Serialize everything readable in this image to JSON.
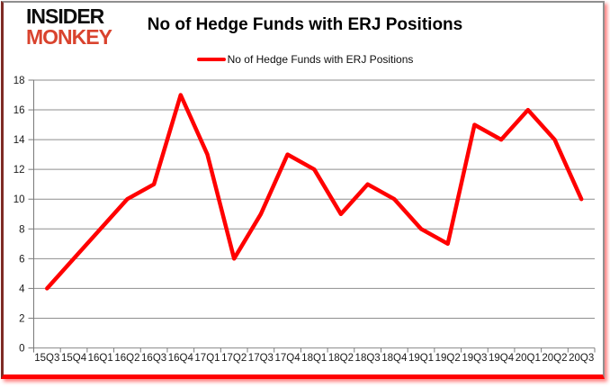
{
  "logo": {
    "line1": "INSIDER",
    "line2": "MONKEY"
  },
  "header": {
    "title": "No of Hedge Funds with ERJ Positions"
  },
  "legend": {
    "label": "No of Hedge Funds with ERJ Positions"
  },
  "colors": {
    "line": "#ff0000",
    "grid": "#8e8e8e",
    "axis": "#7a7a7a",
    "tick_label": "#1a1a1a",
    "logo_accent": "#d9432e",
    "frame_bottom": "#ff0000"
  },
  "chart_data": {
    "type": "line",
    "title": "No of Hedge Funds with ERJ Positions",
    "categories": [
      "15Q3",
      "15Q4",
      "16Q1",
      "16Q2",
      "16Q3",
      "16Q4",
      "17Q1",
      "17Q2",
      "17Q3",
      "17Q4",
      "18Q1",
      "18Q2",
      "18Q3",
      "18Q4",
      "19Q1",
      "19Q2",
      "19Q3",
      "19Q4",
      "20Q1",
      "20Q2",
      "20Q3"
    ],
    "series": [
      {
        "name": "No of Hedge Funds with ERJ Positions",
        "values": [
          4,
          6,
          8,
          10,
          11,
          17,
          13,
          6,
          9,
          13,
          12,
          9,
          11,
          10,
          8,
          7,
          15,
          14,
          16,
          14,
          10
        ]
      }
    ],
    "xlabel": "",
    "ylabel": "",
    "ylim": [
      0,
      18
    ],
    "ytick_step": 2,
    "grid": true,
    "legend_position": "top-center",
    "line_color": "#ff0000"
  }
}
